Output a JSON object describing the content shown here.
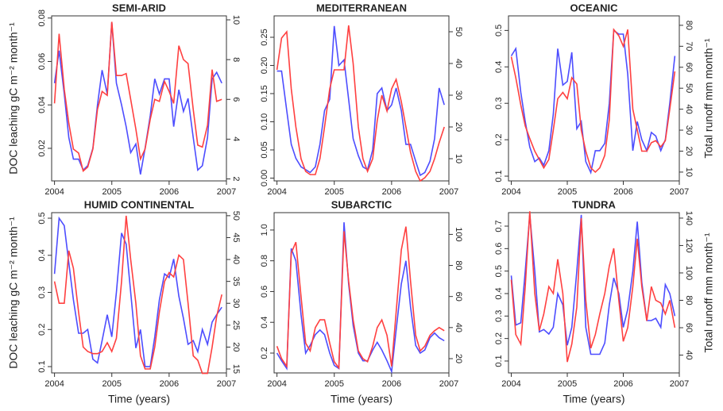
{
  "chart_data": [
    {
      "type": "line",
      "title": "SEMI-ARID",
      "ylabel": "DOC leaching gC m⁻² month⁻¹",
      "x": [
        2004,
        2004.08,
        2004.17,
        2004.25,
        2004.33,
        2004.42,
        2004.5,
        2004.58,
        2004.67,
        2004.75,
        2004.83,
        2004.92,
        2005,
        2005.08,
        2005.17,
        2005.25,
        2005.33,
        2005.42,
        2005.5,
        2005.58,
        2005.67,
        2005.75,
        2005.83,
        2005.92,
        2006,
        2006.08,
        2006.17,
        2006.25,
        2006.33,
        2006.42,
        2006.5,
        2006.58,
        2006.67,
        2006.75,
        2006.83,
        2006.92
      ],
      "xlim": [
        2003.95,
        2007
      ],
      "xticks": [
        2004,
        2005,
        2006,
        2007
      ],
      "ylim": [
        0.005,
        0.081
      ],
      "yticks": [
        0.02,
        0.04,
        0.06,
        0.08
      ],
      "y2lim": [
        1.9,
        10.2
      ],
      "y2ticks": [
        2,
        4,
        6,
        8,
        10
      ],
      "series": [
        {
          "color": "#4d4dff",
          "values": [
            0.05,
            0.065,
            0.045,
            0.025,
            0.015,
            0.015,
            0.01,
            0.012,
            0.02,
            0.04,
            0.056,
            0.045,
            0.078,
            0.05,
            0.04,
            0.03,
            0.018,
            0.022,
            0.008,
            0.02,
            0.035,
            0.052,
            0.045,
            0.052,
            0.052,
            0.03,
            0.047,
            0.037,
            0.043,
            0.025,
            0.01,
            0.012,
            0.025,
            0.052,
            0.055,
            0.05
          ]
        },
        {
          "color": "#ff4040",
          "axis": "y2",
          "values": [
            5.8,
            9.3,
            6.5,
            4.8,
            3.5,
            3.3,
            2.4,
            2.6,
            3.5,
            5.5,
            6.4,
            6.2,
            9.9,
            7.2,
            7.2,
            7.3,
            6,
            4.5,
            3,
            3.5,
            5,
            6,
            5.9,
            6.9,
            6.4,
            5.8,
            8.7,
            8,
            7.8,
            5.5,
            3.7,
            3.6,
            4.7,
            7.5,
            5.9,
            6
          ]
        }
      ]
    },
    {
      "type": "line",
      "title": "MEDITERRANEAN",
      "x": [
        2004,
        2004.08,
        2004.17,
        2004.25,
        2004.33,
        2004.42,
        2004.5,
        2004.58,
        2004.67,
        2004.75,
        2004.83,
        2004.92,
        2005,
        2005.08,
        2005.17,
        2005.25,
        2005.33,
        2005.42,
        2005.5,
        2005.58,
        2005.67,
        2005.75,
        2005.83,
        2005.92,
        2006,
        2006.08,
        2006.17,
        2006.25,
        2006.33,
        2006.42,
        2006.5,
        2006.58,
        2006.67,
        2006.75,
        2006.83,
        2006.92
      ],
      "xlim": [
        2003.95,
        2007
      ],
      "xticks": [
        2004,
        2005,
        2006,
        2007
      ],
      "ylim": [
        -0.005,
        0.288
      ],
      "yticks": [
        {
          "value": 0,
          "label": "0.00"
        },
        0.05,
        {
          "value": 0.1,
          "label": "0.10"
        },
        0.15,
        {
          "value": 0.2,
          "label": "0.20"
        },
        0.25
      ],
      "y2lim": [
        3,
        55
      ],
      "y2ticks": [
        10,
        20,
        30,
        40,
        50
      ],
      "series": [
        {
          "color": "#4d4dff",
          "values": [
            0.19,
            0.19,
            0.12,
            0.06,
            0.035,
            0.02,
            0.015,
            0.01,
            0.02,
            0.06,
            0.12,
            0.14,
            0.27,
            0.2,
            0.21,
            0.14,
            0.07,
            0.04,
            0.02,
            0.015,
            0.05,
            0.15,
            0.16,
            0.12,
            0.13,
            0.16,
            0.12,
            0.06,
            0.06,
            0.03,
            0.005,
            0.01,
            0.03,
            0.07,
            0.16,
            0.13
          ]
        },
        {
          "color": "#ff4040",
          "axis": "y2",
          "values": [
            38,
            48,
            50,
            32,
            20,
            10,
            6,
            5,
            5,
            10,
            20,
            32,
            38,
            38,
            38,
            52,
            40,
            20,
            10,
            6,
            10,
            22,
            30,
            25,
            32,
            35,
            28,
            20,
            12,
            6,
            3,
            4,
            6,
            10,
            15,
            20
          ]
        }
      ]
    },
    {
      "type": "line",
      "title": "OCEANIC",
      "y2label": "Total runoff mm month⁻¹",
      "x": [
        2004,
        2004.08,
        2004.17,
        2004.25,
        2004.33,
        2004.42,
        2004.5,
        2004.58,
        2004.67,
        2004.75,
        2004.83,
        2004.92,
        2005,
        2005.08,
        2005.17,
        2005.25,
        2005.33,
        2005.42,
        2005.5,
        2005.58,
        2005.67,
        2005.75,
        2005.83,
        2005.92,
        2006,
        2006.08,
        2006.17,
        2006.25,
        2006.33,
        2006.42,
        2006.5,
        2006.58,
        2006.67,
        2006.75,
        2006.83,
        2006.92
      ],
      "xlim": [
        2003.95,
        2007
      ],
      "xticks": [
        2004,
        2005,
        2006,
        2007
      ],
      "ylim": [
        0.087,
        0.54
      ],
      "yticks": [
        0.1,
        0.2,
        0.3,
        0.4,
        0.5
      ],
      "y2lim": [
        5.8,
        84.5
      ],
      "y2ticks": [
        10,
        20,
        30,
        40,
        50,
        60,
        70,
        80
      ],
      "series": [
        {
          "color": "#4d4dff",
          "values": [
            0.43,
            0.45,
            0.33,
            0.25,
            0.18,
            0.14,
            0.15,
            0.13,
            0.17,
            0.27,
            0.45,
            0.35,
            0.36,
            0.44,
            0.23,
            0.25,
            0.14,
            0.11,
            0.17,
            0.17,
            0.19,
            0.3,
            0.5,
            0.49,
            0.49,
            0.38,
            0.17,
            0.25,
            0.2,
            0.17,
            0.22,
            0.21,
            0.17,
            0.2,
            0.3,
            0.43
          ]
        },
        {
          "color": "#ff4040",
          "axis": "y2",
          "values": [
            65,
            55,
            42,
            32,
            26,
            20,
            16,
            12,
            16,
            30,
            45,
            48,
            45,
            55,
            52,
            30,
            20,
            12,
            10,
            12,
            18,
            35,
            78,
            75,
            70,
            78,
            40,
            30,
            20,
            20,
            24,
            25,
            22,
            25,
            40,
            58
          ]
        }
      ]
    },
    {
      "type": "line",
      "title": "HUMID CONTINENTAL",
      "ylabel": "DOC leaching gC m⁻² month⁻¹",
      "xlabel": "Time (years)",
      "x": [
        2004,
        2004.08,
        2004.17,
        2004.25,
        2004.33,
        2004.42,
        2004.5,
        2004.58,
        2004.67,
        2004.75,
        2004.83,
        2004.92,
        2005,
        2005.08,
        2005.17,
        2005.25,
        2005.33,
        2005.42,
        2005.5,
        2005.58,
        2005.67,
        2005.75,
        2005.83,
        2005.92,
        2006,
        2006.08,
        2006.17,
        2006.25,
        2006.33,
        2006.42,
        2006.5,
        2006.58,
        2006.67,
        2006.75,
        2006.83,
        2006.92
      ],
      "xlim": [
        2003.95,
        2007
      ],
      "xticks": [
        2004,
        2005,
        2006,
        2007
      ],
      "ylim": [
        0.083,
        0.515
      ],
      "yticks": [
        0.1,
        0.2,
        0.3,
        0.4,
        0.5
      ],
      "y2lim": [
        14.1,
        50.7
      ],
      "y2ticks": [
        15,
        20,
        25,
        30,
        35,
        40,
        45,
        50
      ],
      "series": [
        {
          "color": "#4d4dff",
          "values": [
            0.35,
            0.5,
            0.48,
            0.38,
            0.28,
            0.19,
            0.19,
            0.2,
            0.12,
            0.11,
            0.17,
            0.24,
            0.18,
            0.3,
            0.46,
            0.43,
            0.3,
            0.15,
            0.2,
            0.1,
            0.1,
            0.18,
            0.28,
            0.35,
            0.34,
            0.39,
            0.29,
            0.23,
            0.16,
            0.17,
            0.14,
            0.2,
            0.16,
            0.22,
            0.24,
            0.26
          ]
        },
        {
          "color": "#ff4040",
          "axis": "y2",
          "values": [
            35,
            30,
            30,
            42,
            38,
            28,
            20,
            19,
            18.5,
            18.5,
            19,
            21,
            19,
            22,
            35,
            50,
            40,
            30,
            18,
            15,
            15,
            20,
            28,
            35,
            37,
            36,
            41,
            40,
            30,
            18,
            17,
            14,
            14,
            20,
            27,
            32
          ]
        }
      ]
    },
    {
      "type": "line",
      "title": "SUBARCTIC",
      "xlabel": "Time (years)",
      "x": [
        2004,
        2004.08,
        2004.17,
        2004.25,
        2004.33,
        2004.42,
        2004.5,
        2004.58,
        2004.67,
        2004.75,
        2004.83,
        2004.92,
        2005,
        2005.08,
        2005.17,
        2005.25,
        2005.33,
        2005.42,
        2005.5,
        2005.58,
        2005.67,
        2005.75,
        2005.83,
        2005.92,
        2006,
        2006.08,
        2006.17,
        2006.25,
        2006.33,
        2006.42,
        2006.5,
        2006.58,
        2006.67,
        2006.75,
        2006.83,
        2006.92
      ],
      "xlim": [
        2003.95,
        2007
      ],
      "xticks": [
        2004,
        2005,
        2006,
        2007
      ],
      "ylim": [
        0.071,
        1.113
      ],
      "yticks": [
        0.2,
        0.4,
        0.6,
        0.8,
        {
          "value": 1,
          "label": "1.0"
        }
      ],
      "y2lim": [
        10.8,
        114
      ],
      "y2ticks": [
        20,
        40,
        60,
        80,
        100
      ],
      "series": [
        {
          "color": "#4d4dff",
          "values": [
            0.2,
            0.15,
            0.1,
            0.88,
            0.8,
            0.45,
            0.2,
            0.25,
            0.32,
            0.35,
            0.32,
            0.2,
            0.12,
            0.1,
            1.05,
            0.65,
            0.38,
            0.2,
            0.15,
            0.15,
            0.22,
            0.27,
            0.22,
            0.15,
            0.08,
            0.35,
            0.65,
            0.8,
            0.5,
            0.25,
            0.2,
            0.22,
            0.3,
            0.33,
            0.3,
            0.28
          ]
        },
        {
          "color": "#ff4040",
          "axis": "y2",
          "values": [
            28,
            20,
            15,
            88,
            95,
            60,
            30,
            25,
            40,
            45,
            45,
            30,
            18,
            14,
            102,
            70,
            45,
            25,
            20,
            18,
            28,
            40,
            45,
            35,
            15,
            50,
            90,
            105,
            70,
            35,
            25,
            28,
            35,
            38,
            40,
            38
          ]
        }
      ]
    },
    {
      "type": "line",
      "title": "TUNDRA",
      "xlabel": "Time (years)",
      "y2label": "Total runoff mm month⁻¹",
      "x": [
        2004,
        2004.08,
        2004.17,
        2004.25,
        2004.33,
        2004.42,
        2004.5,
        2004.58,
        2004.67,
        2004.75,
        2004.83,
        2004.92,
        2005,
        2005.08,
        2005.17,
        2005.25,
        2005.33,
        2005.42,
        2005.5,
        2005.58,
        2005.67,
        2005.75,
        2005.83,
        2005.92,
        2006,
        2006.08,
        2006.17,
        2006.25,
        2006.33,
        2006.42,
        2006.5,
        2006.58,
        2006.67,
        2006.75,
        2006.83,
        2006.92
      ],
      "xlim": [
        2003.95,
        2007
      ],
      "xticks": [
        2004,
        2005,
        2006,
        2007
      ],
      "ylim": [
        0.047,
        0.76
      ],
      "yticks": [
        0.1,
        0.2,
        0.3,
        0.4,
        0.5,
        0.6,
        0.7
      ],
      "y2lim": [
        27,
        144
      ],
      "y2ticks": [
        40,
        60,
        80,
        100,
        120,
        140
      ],
      "series": [
        {
          "color": "#4d4dff",
          "values": [
            0.48,
            0.26,
            0.27,
            0.5,
            0.75,
            0.5,
            0.23,
            0.24,
            0.22,
            0.25,
            0.4,
            0.35,
            0.17,
            0.25,
            0.5,
            0.75,
            0.25,
            0.13,
            0.13,
            0.13,
            0.18,
            0.35,
            0.47,
            0.4,
            0.25,
            0.33,
            0.5,
            0.72,
            0.45,
            0.28,
            0.28,
            0.29,
            0.25,
            0.44,
            0.4,
            0.3
          ]
        },
        {
          "color": "#ff4040",
          "axis": "y2",
          "values": [
            95,
            55,
            48,
            90,
            145,
            85,
            58,
            70,
            90,
            85,
            110,
            85,
            35,
            48,
            75,
            140,
            80,
            45,
            55,
            70,
            85,
            105,
            118,
            80,
            50,
            60,
            90,
            125,
            90,
            65,
            90,
            80,
            78,
            70,
            80,
            60
          ]
        }
      ]
    }
  ]
}
